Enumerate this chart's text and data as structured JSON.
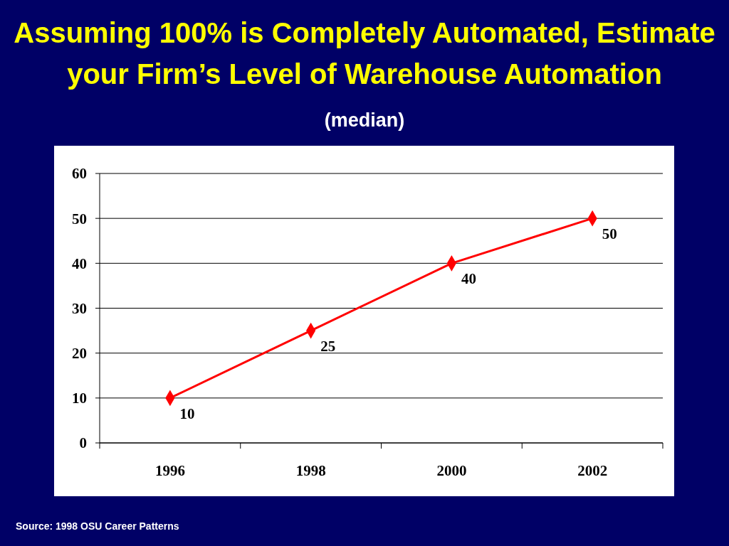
{
  "chart_data": {
    "type": "line",
    "title": "Assuming 100% is Completely Automated, Estimate your Firm’s Level of Warehouse Automation",
    "subtitle": "(median)",
    "categories": [
      "1996",
      "1998",
      "2000",
      "2002"
    ],
    "series": [
      {
        "color": "#ff0000",
        "values": [
          10,
          25,
          40,
          50
        ]
      }
    ],
    "ylim": [
      0,
      60
    ],
    "yticks": [
      0,
      10,
      20,
      30,
      40,
      50,
      60
    ],
    "grid": "y",
    "marker": "diamond",
    "data_labels": true,
    "annotations": [
      "Source: 1998 OSU Career Patterns"
    ]
  }
}
